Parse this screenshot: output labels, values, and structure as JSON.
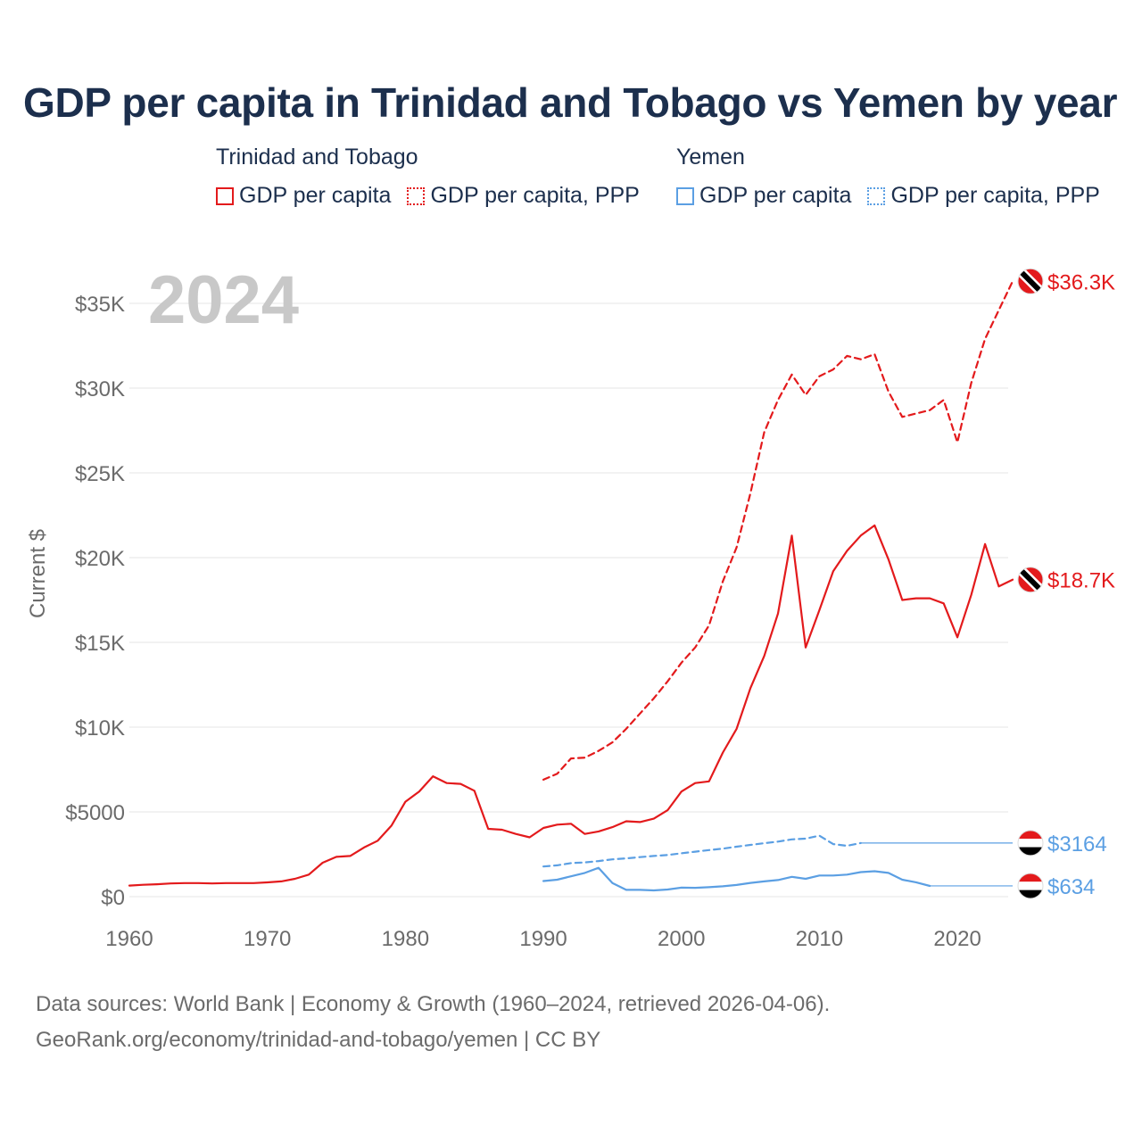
{
  "title": "GDP per capita in Trinidad and Tobago vs Yemen by year",
  "legend": [
    {
      "country": "Trinidad and Tobago",
      "color": "#e31a1c",
      "items": [
        {
          "label": "GDP per capita",
          "style": "solid"
        },
        {
          "label": "GDP per capita, PPP",
          "style": "dotted"
        }
      ]
    },
    {
      "country": "Yemen",
      "color": "#5b9fe3",
      "items": [
        {
          "label": "GDP per capita",
          "style": "solid"
        },
        {
          "label": "GDP per capita, PPP",
          "style": "dotted"
        }
      ]
    }
  ],
  "footer": {
    "sources": "Data sources: World Bank | Economy & Growth (1960–2024, retrieved 2026-04-06).",
    "link": "GeoRank.org/economy/trinidad-and-tobago/yemen | CC BY"
  },
  "chart_data": {
    "type": "line",
    "title": "GDP per capita in Trinidad and Tobago vs Yemen by year",
    "year_watermark": "2024",
    "ylabel": "Current $",
    "xlabel": "",
    "xlim": [
      1960,
      2024
    ],
    "ylim": [
      0,
      37000
    ],
    "x_ticks": [
      1960,
      1970,
      1980,
      1990,
      2000,
      2010,
      2020
    ],
    "y_ticks": [
      {
        "value": 0,
        "label": "$0"
      },
      {
        "value": 5000,
        "label": "$5000"
      },
      {
        "value": 10000,
        "label": "$10K"
      },
      {
        "value": 15000,
        "label": "$15K"
      },
      {
        "value": 20000,
        "label": "$20K"
      },
      {
        "value": 25000,
        "label": "$25K"
      },
      {
        "value": 30000,
        "label": "$30K"
      },
      {
        "value": 35000,
        "label": "$35K"
      }
    ],
    "grid": true,
    "series": [
      {
        "name": "Trinidad and Tobago GDP per capita, PPP",
        "country": "Trinidad and Tobago",
        "color": "#e31a1c",
        "dash": "dashed",
        "end_label": "$36.3K",
        "flag": "trinidad-and-tobago",
        "points": [
          [
            1990,
            6900
          ],
          [
            1991,
            7250
          ],
          [
            1992,
            8150
          ],
          [
            1993,
            8200
          ],
          [
            1994,
            8600
          ],
          [
            1995,
            9100
          ],
          [
            1996,
            9900
          ],
          [
            1997,
            10800
          ],
          [
            1998,
            11700
          ],
          [
            1999,
            12700
          ],
          [
            2000,
            13800
          ],
          [
            2001,
            14700
          ],
          [
            2002,
            16000
          ],
          [
            2003,
            18600
          ],
          [
            2004,
            20600
          ],
          [
            2005,
            23800
          ],
          [
            2006,
            27400
          ],
          [
            2007,
            29300
          ],
          [
            2008,
            30800
          ],
          [
            2009,
            29600
          ],
          [
            2010,
            30700
          ],
          [
            2011,
            31100
          ],
          [
            2012,
            31900
          ],
          [
            2013,
            31700
          ],
          [
            2014,
            32000
          ],
          [
            2015,
            29800
          ],
          [
            2016,
            28300
          ],
          [
            2017,
            28500
          ],
          [
            2018,
            28700
          ],
          [
            2019,
            29300
          ],
          [
            2020,
            26800
          ],
          [
            2021,
            30300
          ],
          [
            2022,
            32900
          ],
          [
            2023,
            34600
          ],
          [
            2024,
            36300
          ]
        ]
      },
      {
        "name": "Trinidad and Tobago GDP per capita",
        "country": "Trinidad and Tobago",
        "color": "#e31a1c",
        "dash": "solid",
        "end_label": "$18.7K",
        "flag": "trinidad-and-tobago",
        "points": [
          [
            1960,
            650
          ],
          [
            1961,
            700
          ],
          [
            1962,
            730
          ],
          [
            1963,
            780
          ],
          [
            1964,
            800
          ],
          [
            1965,
            800
          ],
          [
            1966,
            780
          ],
          [
            1967,
            800
          ],
          [
            1968,
            800
          ],
          [
            1969,
            800
          ],
          [
            1970,
            840
          ],
          [
            1971,
            900
          ],
          [
            1972,
            1050
          ],
          [
            1973,
            1300
          ],
          [
            1974,
            2000
          ],
          [
            1975,
            2350
          ],
          [
            1976,
            2400
          ],
          [
            1977,
            2900
          ],
          [
            1978,
            3300
          ],
          [
            1979,
            4200
          ],
          [
            1980,
            5600
          ],
          [
            1981,
            6200
          ],
          [
            1982,
            7100
          ],
          [
            1983,
            6700
          ],
          [
            1984,
            6650
          ],
          [
            1985,
            6250
          ],
          [
            1986,
            4000
          ],
          [
            1987,
            3950
          ],
          [
            1988,
            3700
          ],
          [
            1989,
            3500
          ],
          [
            1990,
            4050
          ],
          [
            1991,
            4250
          ],
          [
            1992,
            4300
          ],
          [
            1993,
            3700
          ],
          [
            1994,
            3850
          ],
          [
            1995,
            4100
          ],
          [
            1996,
            4450
          ],
          [
            1997,
            4400
          ],
          [
            1998,
            4600
          ],
          [
            1999,
            5100
          ],
          [
            2000,
            6200
          ],
          [
            2001,
            6700
          ],
          [
            2002,
            6800
          ],
          [
            2003,
            8500
          ],
          [
            2004,
            9900
          ],
          [
            2005,
            12300
          ],
          [
            2006,
            14200
          ],
          [
            2007,
            16700
          ],
          [
            2008,
            21300
          ],
          [
            2009,
            14700
          ],
          [
            2010,
            16900
          ],
          [
            2011,
            19200
          ],
          [
            2012,
            20400
          ],
          [
            2013,
            21300
          ],
          [
            2014,
            21900
          ],
          [
            2015,
            19900
          ],
          [
            2016,
            17500
          ],
          [
            2017,
            17600
          ],
          [
            2018,
            17600
          ],
          [
            2019,
            17300
          ],
          [
            2020,
            15300
          ],
          [
            2021,
            17800
          ],
          [
            2022,
            20800
          ],
          [
            2023,
            18300
          ],
          [
            2024,
            18700
          ]
        ]
      },
      {
        "name": "Yemen GDP per capita, PPP",
        "country": "Yemen",
        "color": "#5b9fe3",
        "dash": "dashed",
        "end_label": "$3164",
        "flag": "yemen",
        "points": [
          [
            1990,
            1780
          ],
          [
            1991,
            1850
          ],
          [
            1992,
            1980
          ],
          [
            1993,
            2020
          ],
          [
            1994,
            2100
          ],
          [
            1995,
            2200
          ],
          [
            1996,
            2260
          ],
          [
            1997,
            2330
          ],
          [
            1998,
            2400
          ],
          [
            1999,
            2460
          ],
          [
            2000,
            2560
          ],
          [
            2001,
            2650
          ],
          [
            2002,
            2750
          ],
          [
            2003,
            2830
          ],
          [
            2004,
            2950
          ],
          [
            2005,
            3050
          ],
          [
            2006,
            3150
          ],
          [
            2007,
            3250
          ],
          [
            2008,
            3380
          ],
          [
            2009,
            3420
          ],
          [
            2010,
            3600
          ],
          [
            2011,
            3100
          ],
          [
            2012,
            3000
          ],
          [
            2013,
            3164
          ]
        ],
        "flat_to": 2024
      },
      {
        "name": "Yemen GDP per capita",
        "country": "Yemen",
        "color": "#5b9fe3",
        "dash": "solid",
        "end_label": "$634",
        "flag": "yemen",
        "points": [
          [
            1990,
            920
          ],
          [
            1991,
            1000
          ],
          [
            1992,
            1200
          ],
          [
            1993,
            1400
          ],
          [
            1994,
            1700
          ],
          [
            1995,
            800
          ],
          [
            1996,
            400
          ],
          [
            1997,
            400
          ],
          [
            1998,
            370
          ],
          [
            1999,
            420
          ],
          [
            2000,
            530
          ],
          [
            2001,
            520
          ],
          [
            2002,
            560
          ],
          [
            2003,
            610
          ],
          [
            2004,
            690
          ],
          [
            2005,
            810
          ],
          [
            2006,
            900
          ],
          [
            2007,
            980
          ],
          [
            2008,
            1170
          ],
          [
            2009,
            1050
          ],
          [
            2010,
            1250
          ],
          [
            2011,
            1250
          ],
          [
            2012,
            1300
          ],
          [
            2013,
            1450
          ],
          [
            2014,
            1500
          ],
          [
            2015,
            1400
          ],
          [
            2016,
            1000
          ],
          [
            2017,
            850
          ],
          [
            2018,
            634
          ]
        ],
        "flat_to": 2024
      }
    ]
  }
}
